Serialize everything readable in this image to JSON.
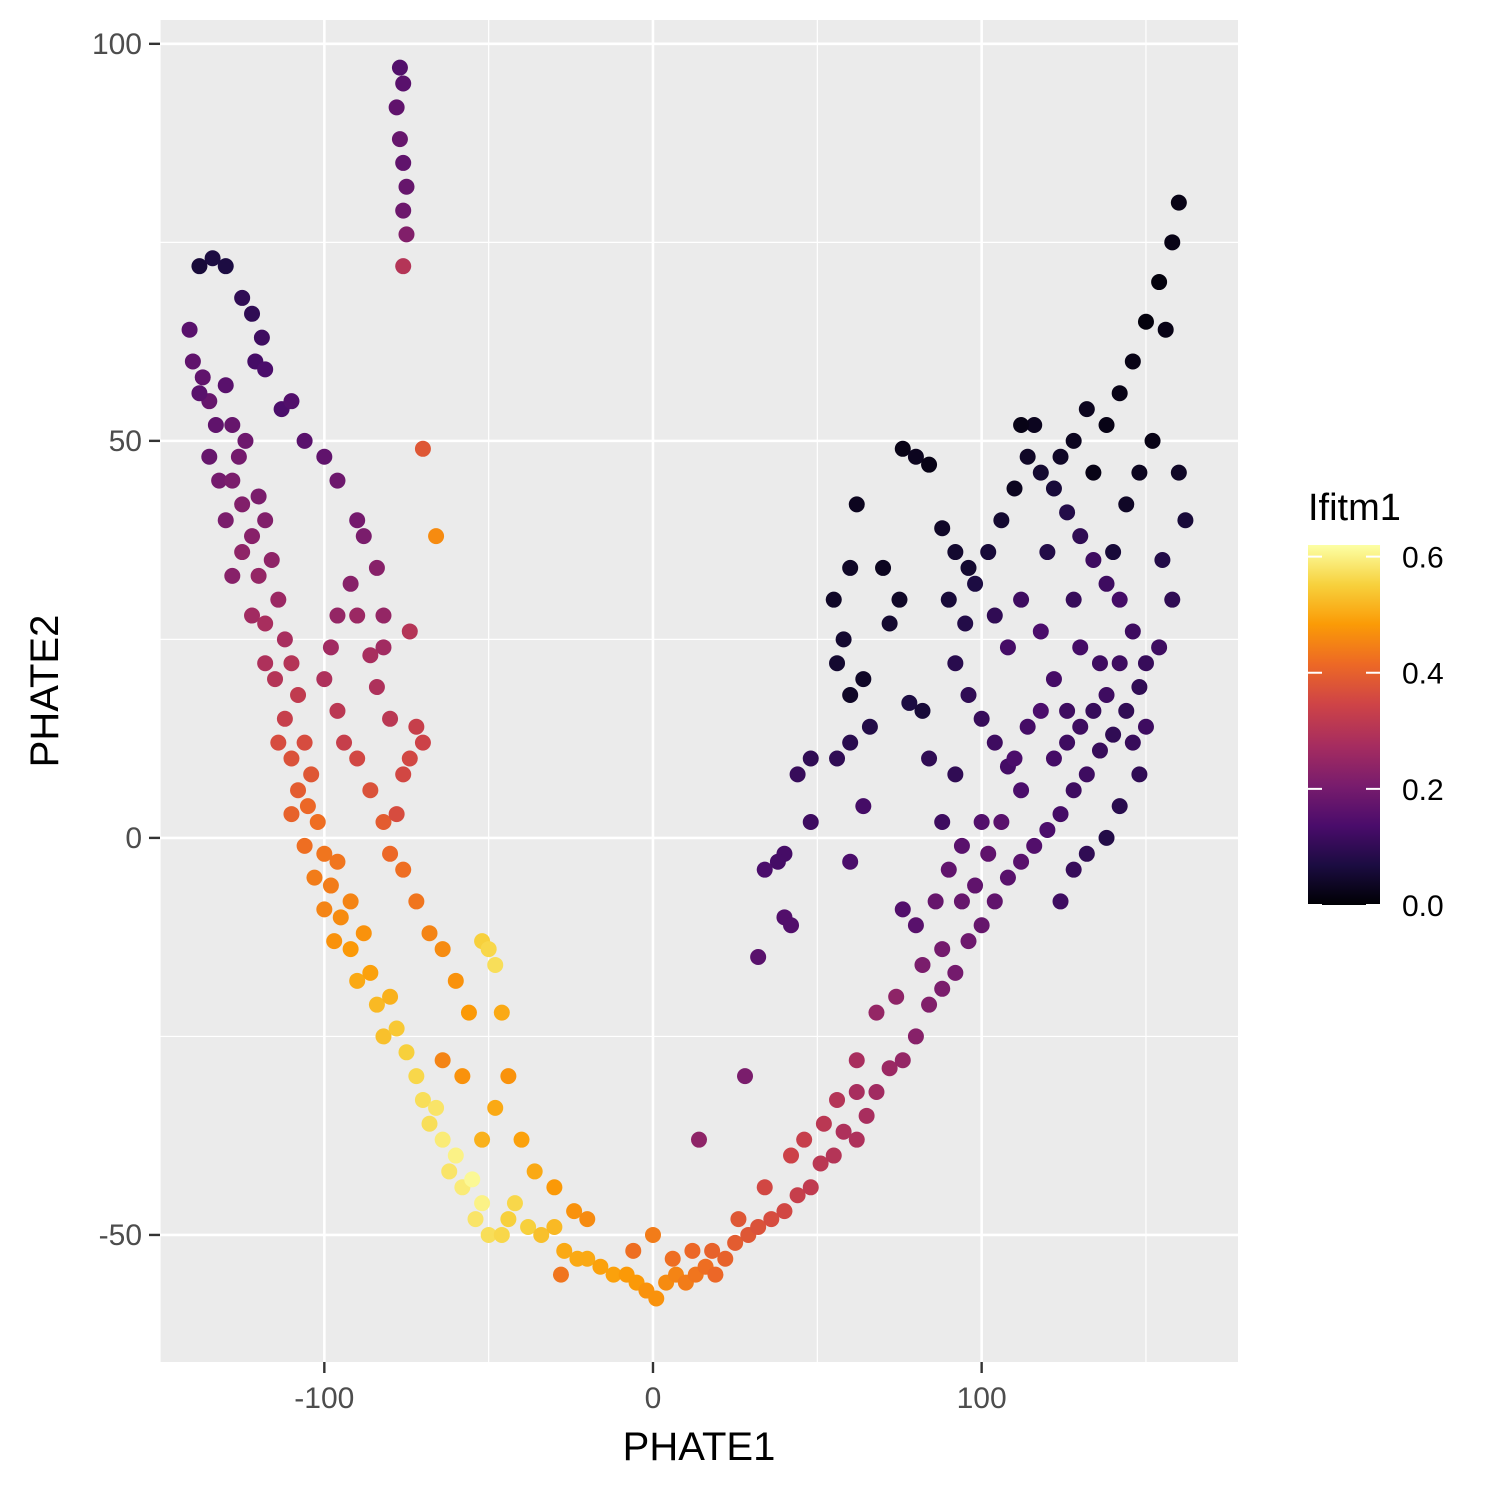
{
  "chart_data": {
    "type": "scatter",
    "title": "",
    "xlabel": "PHATE1",
    "ylabel": "PHATE2",
    "xlim": [
      -150,
      178
    ],
    "ylim": [
      -66,
      103
    ],
    "x_ticks": [
      -100,
      0,
      100
    ],
    "x_tick_labels": [
      "-100",
      "0",
      "100"
    ],
    "y_ticks": [
      -50,
      0,
      50,
      100
    ],
    "y_tick_labels": [
      "-50",
      "0",
      "50",
      "100"
    ],
    "grid": true,
    "panel_background": "#ebebeb",
    "legend": {
      "title": "Ifitm1",
      "position": "right",
      "min": 0.0,
      "max": 0.62,
      "ticks": [
        0.0,
        0.2,
        0.4,
        0.6
      ],
      "tick_labels": [
        "0.0",
        "0.2",
        "0.4",
        "0.6"
      ],
      "colormap": "inferno",
      "colors": [
        "#000004",
        "#1b0c41",
        "#4a0c6b",
        "#781c6d",
        "#a52c60",
        "#cf4446",
        "#ed6925",
        "#fb9b06",
        "#f7d13d",
        "#fcffa4"
      ]
    },
    "points": [
      [
        -140,
        60,
        0.17
      ],
      [
        -141,
        64,
        0.16
      ],
      [
        -137,
        58,
        0.17
      ],
      [
        -135,
        55,
        0.18
      ],
      [
        -133,
        52,
        0.17
      ],
      [
        -138,
        56,
        0.16
      ],
      [
        -130,
        57,
        0.16
      ],
      [
        -128,
        52,
        0.18
      ],
      [
        -135,
        48,
        0.18
      ],
      [
        -132,
        45,
        0.2
      ],
      [
        -128,
        45,
        0.21
      ],
      [
        -126,
        48,
        0.2
      ],
      [
        -124,
        50,
        0.19
      ],
      [
        -125,
        42,
        0.22
      ],
      [
        -130,
        40,
        0.21
      ],
      [
        -122,
        38,
        0.23
      ],
      [
        -120,
        43,
        0.21
      ],
      [
        -118,
        40,
        0.22
      ],
      [
        -125,
        36,
        0.24
      ],
      [
        -128,
        33,
        0.23
      ],
      [
        -120,
        33,
        0.25
      ],
      [
        -116,
        35,
        0.24
      ],
      [
        -122,
        28,
        0.27
      ],
      [
        -118,
        27,
        0.28
      ],
      [
        -114,
        30,
        0.26
      ],
      [
        -112,
        25,
        0.28
      ],
      [
        -118,
        22,
        0.29
      ],
      [
        -115,
        20,
        0.3
      ],
      [
        -110,
        22,
        0.3
      ],
      [
        -108,
        18,
        0.32
      ],
      [
        -112,
        15,
        0.33
      ],
      [
        -114,
        12,
        0.36
      ],
      [
        -110,
        10,
        0.37
      ],
      [
        -106,
        12,
        0.36
      ],
      [
        -104,
        8,
        0.38
      ],
      [
        -108,
        6,
        0.39
      ],
      [
        -110,
        3,
        0.4
      ],
      [
        -105,
        4,
        0.41
      ],
      [
        -102,
        2,
        0.42
      ],
      [
        -106,
        -1,
        0.42
      ],
      [
        -100,
        -2,
        0.43
      ],
      [
        -103,
        -5,
        0.44
      ],
      [
        -98,
        -6,
        0.44
      ],
      [
        -96,
        -3,
        0.43
      ],
      [
        -100,
        -9,
        0.45
      ],
      [
        -95,
        -10,
        0.46
      ],
      [
        -92,
        -8,
        0.45
      ],
      [
        -97,
        -13,
        0.47
      ],
      [
        -92,
        -14,
        0.48
      ],
      [
        -88,
        -12,
        0.47
      ],
      [
        -90,
        -18,
        0.5
      ],
      [
        -86,
        -17,
        0.49
      ],
      [
        -84,
        -21,
        0.52
      ],
      [
        -80,
        -20,
        0.51
      ],
      [
        -82,
        -25,
        0.53
      ],
      [
        -78,
        -24,
        0.54
      ],
      [
        -75,
        -27,
        0.55
      ],
      [
        -72,
        -30,
        0.56
      ],
      [
        -70,
        -33,
        0.57
      ],
      [
        -66,
        -34,
        0.58
      ],
      [
        -68,
        -36,
        0.57
      ],
      [
        -64,
        -38,
        0.59
      ],
      [
        -60,
        -40,
        0.6
      ],
      [
        -62,
        -42,
        0.58
      ],
      [
        -58,
        -44,
        0.59
      ],
      [
        -55,
        -43,
        0.61
      ],
      [
        -52,
        -46,
        0.6
      ],
      [
        -54,
        -48,
        0.58
      ],
      [
        -50,
        -50,
        0.57
      ],
      [
        -46,
        -50,
        0.56
      ],
      [
        -44,
        -48,
        0.55
      ],
      [
        -42,
        -46,
        0.56
      ],
      [
        -38,
        -49,
        0.55
      ],
      [
        -34,
        -50,
        0.53
      ],
      [
        -30,
        -49,
        0.52
      ],
      [
        -27,
        -52,
        0.5
      ],
      [
        -23,
        -53,
        0.5
      ],
      [
        -20,
        -53,
        0.5
      ],
      [
        -16,
        -54,
        0.49
      ],
      [
        -12,
        -55,
        0.49
      ],
      [
        -8,
        -55,
        0.48
      ],
      [
        -5,
        -56,
        0.48
      ],
      [
        -2,
        -57,
        0.47
      ],
      [
        1,
        -58,
        0.47
      ],
      [
        4,
        -56,
        0.46
      ],
      [
        7,
        -55,
        0.45
      ],
      [
        10,
        -56,
        0.44
      ],
      [
        13,
        -55,
        0.43
      ],
      [
        16,
        -54,
        0.42
      ],
      [
        19,
        -55,
        0.41
      ],
      [
        22,
        -53,
        0.4
      ],
      [
        25,
        -51,
        0.39
      ],
      [
        29,
        -50,
        0.38
      ],
      [
        32,
        -49,
        0.37
      ],
      [
        36,
        -48,
        0.36
      ],
      [
        40,
        -47,
        0.35
      ],
      [
        44,
        -45,
        0.33
      ],
      [
        48,
        -44,
        0.32
      ],
      [
        51,
        -41,
        0.31
      ],
      [
        55,
        -40,
        0.3
      ],
      [
        58,
        -37,
        0.29
      ],
      [
        62,
        -38,
        0.29
      ],
      [
        65,
        -35,
        0.28
      ],
      [
        68,
        -32,
        0.27
      ],
      [
        62,
        -32,
        0.28
      ],
      [
        72,
        -29,
        0.26
      ],
      [
        76,
        -28,
        0.25
      ],
      [
        80,
        -25,
        0.23
      ],
      [
        84,
        -21,
        0.22
      ],
      [
        88,
        -19,
        0.21
      ],
      [
        92,
        -17,
        0.2
      ],
      [
        96,
        -13,
        0.19
      ],
      [
        100,
        -11,
        0.18
      ],
      [
        104,
        -8,
        0.17
      ],
      [
        108,
        -5,
        0.16
      ],
      [
        112,
        -3,
        0.16
      ],
      [
        116,
        -1,
        0.15
      ],
      [
        120,
        1,
        0.14
      ],
      [
        124,
        3,
        0.13
      ],
      [
        128,
        6,
        0.12
      ],
      [
        132,
        8,
        0.12
      ],
      [
        136,
        11,
        0.11
      ],
      [
        140,
        13,
        0.1
      ],
      [
        144,
        16,
        0.1
      ],
      [
        148,
        19,
        0.1
      ],
      [
        150,
        22,
        0.11
      ],
      [
        146,
        26,
        0.12
      ],
      [
        142,
        30,
        0.13
      ],
      [
        138,
        32,
        0.12
      ],
      [
        134,
        35,
        0.12
      ],
      [
        130,
        38,
        0.1
      ],
      [
        126,
        41,
        0.08
      ],
      [
        122,
        44,
        0.06
      ],
      [
        118,
        46,
        0.05
      ],
      [
        114,
        48,
        0.04
      ],
      [
        110,
        44,
        0.03
      ],
      [
        106,
        40,
        0.05
      ],
      [
        102,
        36,
        0.06
      ],
      [
        98,
        32,
        0.07
      ],
      [
        95,
        27,
        0.08
      ],
      [
        92,
        22,
        0.09
      ],
      [
        96,
        18,
        0.1
      ],
      [
        100,
        15,
        0.11
      ],
      [
        104,
        12,
        0.12
      ],
      [
        108,
        9,
        0.13
      ],
      [
        112,
        6,
        0.14
      ],
      [
        100,
        2,
        0.15
      ],
      [
        94,
        -1,
        0.16
      ],
      [
        90,
        -4,
        0.17
      ],
      [
        86,
        -8,
        0.18
      ],
      [
        122,
        20,
        0.13
      ],
      [
        126,
        16,
        0.12
      ],
      [
        130,
        24,
        0.13
      ],
      [
        118,
        26,
        0.14
      ],
      [
        112,
        30,
        0.12
      ],
      [
        108,
        24,
        0.13
      ],
      [
        104,
        28,
        0.1
      ],
      [
        120,
        36,
        0.08
      ],
      [
        128,
        30,
        0.11
      ],
      [
        136,
        22,
        0.12
      ],
      [
        140,
        36,
        0.06
      ],
      [
        134,
        46,
        0.02
      ],
      [
        138,
        52,
        0.02
      ],
      [
        142,
        56,
        0.02
      ],
      [
        146,
        60,
        0.02
      ],
      [
        150,
        65,
        0.01
      ],
      [
        154,
        70,
        0.01
      ],
      [
        158,
        75,
        0.02
      ],
      [
        160,
        80,
        0.02
      ],
      [
        156,
        64,
        0.02
      ],
      [
        132,
        54,
        0.03
      ],
      [
        128,
        50,
        0.03
      ],
      [
        124,
        48,
        0.04
      ],
      [
        116,
        52,
        0.03
      ],
      [
        112,
        52,
        0.02
      ],
      [
        144,
        42,
        0.04
      ],
      [
        148,
        46,
        0.03
      ],
      [
        152,
        50,
        0.02
      ],
      [
        160,
        46,
        0.04
      ],
      [
        162,
        40,
        0.06
      ],
      [
        155,
        35,
        0.08
      ],
      [
        158,
        30,
        0.1
      ],
      [
        154,
        24,
        0.12
      ],
      [
        150,
        14,
        0.12
      ],
      [
        148,
        8,
        0.1
      ],
      [
        142,
        4,
        0.09
      ],
      [
        138,
        0,
        0.08
      ],
      [
        132,
        -2,
        0.1
      ],
      [
        128,
        -4,
        0.11
      ],
      [
        124,
        -8,
        0.12
      ],
      [
        76,
        49,
        0.02
      ],
      [
        80,
        48,
        0.03
      ],
      [
        84,
        47,
        0.02
      ],
      [
        62,
        42,
        0.03
      ],
      [
        60,
        34,
        0.04
      ],
      [
        55,
        30,
        0.04
      ],
      [
        58,
        25,
        0.05
      ],
      [
        56,
        22,
        0.05
      ],
      [
        60,
        18,
        0.04
      ],
      [
        64,
        20,
        0.04
      ],
      [
        70,
        34,
        0.03
      ],
      [
        75,
        30,
        0.04
      ],
      [
        72,
        27,
        0.05
      ],
      [
        88,
        39,
        0.04
      ],
      [
        92,
        36,
        0.05
      ],
      [
        96,
        34,
        0.05
      ],
      [
        90,
        30,
        0.06
      ],
      [
        78,
        17,
        0.07
      ],
      [
        82,
        16,
        0.06
      ],
      [
        66,
        14,
        0.08
      ],
      [
        60,
        12,
        0.09
      ],
      [
        56,
        10,
        0.1
      ],
      [
        48,
        10,
        0.1
      ],
      [
        44,
        8,
        0.11
      ],
      [
        48,
        2,
        0.12
      ],
      [
        40,
        -2,
        0.13
      ],
      [
        38,
        -3,
        0.13
      ],
      [
        34,
        -4,
        0.14
      ],
      [
        40,
        -10,
        0.15
      ],
      [
        42,
        -11,
        0.15
      ],
      [
        32,
        -15,
        0.16
      ],
      [
        60,
        -3,
        0.14
      ],
      [
        64,
        4,
        0.13
      ],
      [
        84,
        10,
        0.1
      ],
      [
        76,
        -9,
        0.15
      ],
      [
        80,
        -11,
        0.16
      ],
      [
        28,
        -30,
        0.21
      ],
      [
        14,
        -38,
        0.24
      ],
      [
        88,
        2,
        0.12
      ],
      [
        92,
        8,
        0.1
      ],
      [
        -138,
        72,
        0.06
      ],
      [
        -134,
        73,
        0.07
      ],
      [
        -130,
        72,
        0.07
      ],
      [
        -125,
        68,
        0.1
      ],
      [
        -122,
        66,
        0.1
      ],
      [
        -119,
        63,
        0.12
      ],
      [
        -121,
        60,
        0.13
      ],
      [
        -118,
        59,
        0.14
      ],
      [
        -113,
        54,
        0.14
      ],
      [
        -110,
        55,
        0.15
      ],
      [
        -106,
        50,
        0.16
      ],
      [
        -100,
        48,
        0.17
      ],
      [
        -96,
        45,
        0.19
      ],
      [
        -90,
        40,
        0.2
      ],
      [
        -88,
        38,
        0.21
      ],
      [
        -84,
        34,
        0.23
      ],
      [
        -82,
        28,
        0.25
      ],
      [
        -82,
        24,
        0.27
      ],
      [
        -84,
        19,
        0.29
      ],
      [
        -80,
        15,
        0.31
      ],
      [
        -92,
        32,
        0.23
      ],
      [
        -96,
        28,
        0.25
      ],
      [
        -90,
        28,
        0.26
      ],
      [
        -86,
        23,
        0.28
      ],
      [
        -98,
        24,
        0.27
      ],
      [
        -100,
        20,
        0.29
      ],
      [
        -96,
        16,
        0.31
      ],
      [
        -94,
        12,
        0.33
      ],
      [
        -90,
        10,
        0.35
      ],
      [
        -86,
        6,
        0.37
      ],
      [
        -82,
        2,
        0.39
      ],
      [
        -80,
        -2,
        0.41
      ],
      [
        -76,
        -4,
        0.42
      ],
      [
        -72,
        -8,
        0.43
      ],
      [
        -68,
        -12,
        0.45
      ],
      [
        -64,
        -14,
        0.46
      ],
      [
        -60,
        -18,
        0.47
      ],
      [
        -56,
        -22,
        0.48
      ],
      [
        -72,
        14,
        0.33
      ],
      [
        -70,
        12,
        0.34
      ],
      [
        -74,
        10,
        0.35
      ],
      [
        -76,
        8,
        0.35
      ],
      [
        -78,
        3,
        0.36
      ],
      [
        -52,
        -13,
        0.55
      ],
      [
        -50,
        -14,
        0.56
      ],
      [
        -48,
        -16,
        0.57
      ],
      [
        -46,
        -22,
        0.5
      ],
      [
        -44,
        -30,
        0.47
      ],
      [
        -48,
        -34,
        0.5
      ],
      [
        -52,
        -38,
        0.51
      ],
      [
        -77,
        88,
        0.18
      ],
      [
        -76,
        85,
        0.17
      ],
      [
        -75,
        82,
        0.18
      ],
      [
        -76,
        79,
        0.19
      ],
      [
        -78,
        92,
        0.17
      ],
      [
        -76,
        95,
        0.16
      ],
      [
        -77,
        97,
        0.15
      ],
      [
        -75,
        76,
        0.22
      ],
      [
        -76,
        72,
        0.3
      ],
      [
        -70,
        49,
        0.38
      ],
      [
        -66,
        38,
        0.46
      ],
      [
        -74,
        26,
        0.3
      ],
      [
        -64,
        -28,
        0.45
      ],
      [
        -58,
        -30,
        0.47
      ],
      [
        -40,
        -38,
        0.49
      ],
      [
        -36,
        -42,
        0.5
      ],
      [
        -30,
        -44,
        0.48
      ],
      [
        -24,
        -47,
        0.47
      ],
      [
        -28,
        -55,
        0.43
      ],
      [
        -20,
        -48,
        0.46
      ],
      [
        -6,
        -52,
        0.42
      ],
      [
        0,
        -50,
        0.44
      ],
      [
        6,
        -53,
        0.42
      ],
      [
        12,
        -52,
        0.41
      ],
      [
        18,
        -52,
        0.4
      ],
      [
        26,
        -48,
        0.38
      ],
      [
        34,
        -44,
        0.35
      ],
      [
        42,
        -40,
        0.34
      ],
      [
        46,
        -38,
        0.33
      ],
      [
        52,
        -36,
        0.31
      ],
      [
        56,
        -33,
        0.3
      ],
      [
        62,
        -28,
        0.28
      ],
      [
        68,
        -22,
        0.25
      ],
      [
        74,
        -20,
        0.24
      ],
      [
        82,
        -16,
        0.21
      ],
      [
        88,
        -14,
        0.2
      ],
      [
        94,
        -8,
        0.18
      ],
      [
        98,
        -6,
        0.17
      ],
      [
        102,
        -2,
        0.17
      ],
      [
        106,
        2,
        0.16
      ],
      [
        110,
        10,
        0.14
      ],
      [
        114,
        14,
        0.13
      ],
      [
        118,
        16,
        0.14
      ],
      [
        122,
        10,
        0.13
      ],
      [
        126,
        12,
        0.12
      ],
      [
        130,
        14,
        0.12
      ],
      [
        134,
        16,
        0.11
      ],
      [
        138,
        18,
        0.12
      ],
      [
        142,
        22,
        0.12
      ],
      [
        146,
        12,
        0.11
      ]
    ]
  }
}
